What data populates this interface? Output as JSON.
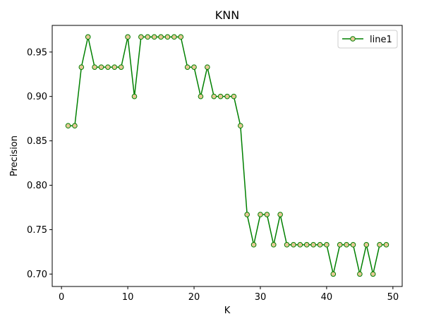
{
  "chart_data": {
    "type": "line",
    "title": "KNN",
    "xlabel": "K",
    "ylabel": "Precision",
    "xlim": [
      -1.4,
      51.4
    ],
    "ylim": [
      0.686,
      0.98
    ],
    "xticks": [
      0,
      10,
      20,
      30,
      40,
      50
    ],
    "yticks": [
      0.7,
      0.75,
      0.8,
      0.85,
      0.9,
      0.95
    ],
    "ytick_labels": [
      "0.70",
      "0.75",
      "0.80",
      "0.85",
      "0.90",
      "0.95"
    ],
    "grid": false,
    "legend": {
      "placement": "top-right"
    },
    "series": [
      {
        "name": "line1",
        "color": "#008000",
        "marker": "circle",
        "marker_face": "#E6C896",
        "marker_edge": "#008000",
        "x": [
          1,
          2,
          3,
          4,
          5,
          6,
          7,
          8,
          9,
          10,
          11,
          12,
          13,
          14,
          15,
          16,
          17,
          18,
          19,
          20,
          21,
          22,
          23,
          24,
          25,
          26,
          27,
          28,
          29,
          30,
          31,
          32,
          33,
          34,
          35,
          36,
          37,
          38,
          39,
          40,
          41,
          42,
          43,
          44,
          45,
          46,
          47,
          48,
          49
        ],
        "y": [
          0.867,
          0.867,
          0.933,
          0.967,
          0.933,
          0.933,
          0.933,
          0.933,
          0.933,
          0.967,
          0.9,
          0.967,
          0.967,
          0.967,
          0.967,
          0.967,
          0.967,
          0.967,
          0.933,
          0.933,
          0.9,
          0.933,
          0.9,
          0.9,
          0.9,
          0.9,
          0.867,
          0.767,
          0.733,
          0.767,
          0.767,
          0.733,
          0.767,
          0.733,
          0.733,
          0.733,
          0.733,
          0.733,
          0.733,
          0.733,
          0.7,
          0.733,
          0.733,
          0.733,
          0.7,
          0.733,
          0.7,
          0.733,
          0.733
        ]
      }
    ]
  }
}
